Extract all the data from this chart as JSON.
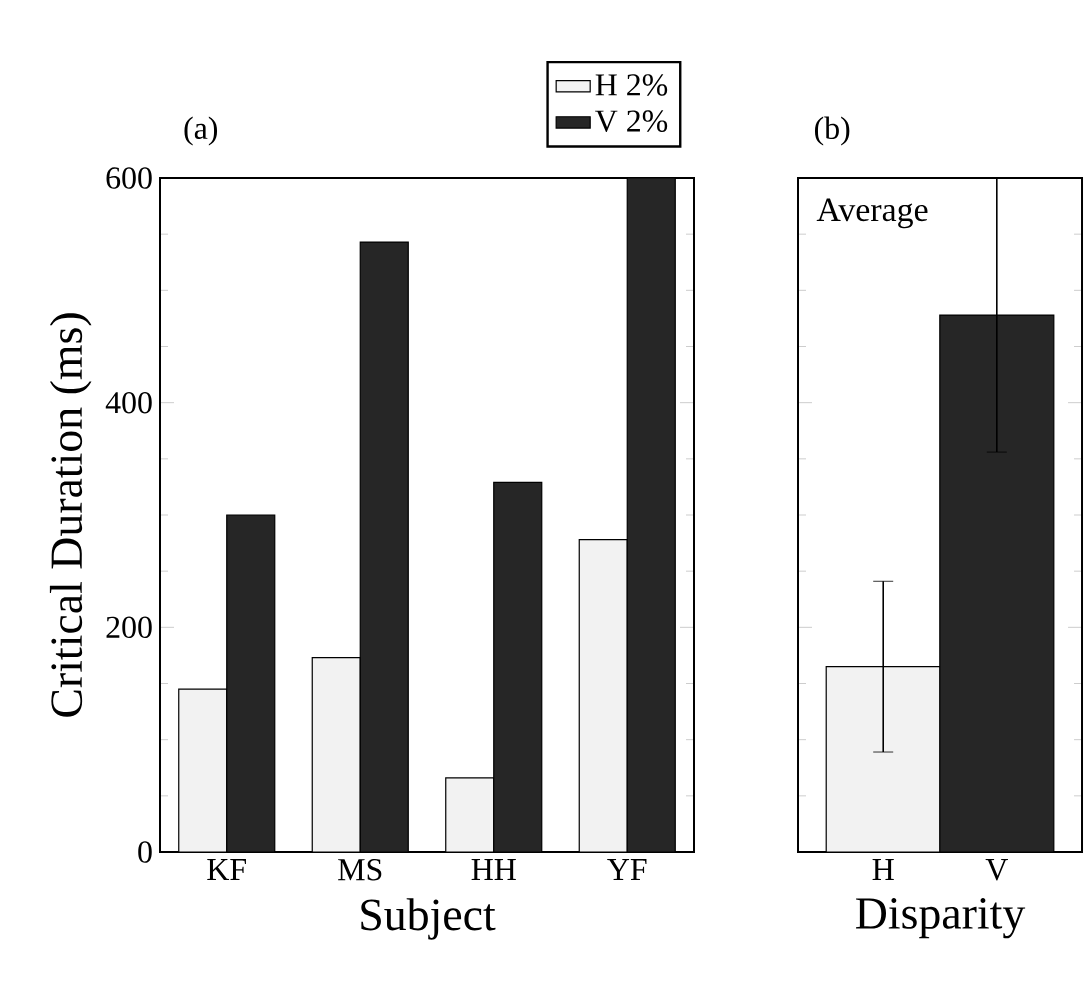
{
  "chart_data": [
    {
      "type": "bar",
      "title": "(a)",
      "xlabel": "Subject",
      "ylabel": "Critical Duration (ms)",
      "categories": [
        "KF",
        "MS",
        "HH",
        "YF"
      ],
      "series": [
        {
          "name": "H 2%",
          "color": "#f2f2f2",
          "values": [
            145,
            173,
            66,
            278
          ]
        },
        {
          "name": "V 2%",
          "color": "#262626",
          "values": [
            300,
            543,
            329,
            600
          ]
        }
      ],
      "ylim": [
        0,
        600
      ],
      "yticks": [
        0,
        200,
        400,
        600
      ],
      "legend": "top"
    },
    {
      "type": "bar",
      "title": "(b)",
      "xlabel": "Disparity",
      "annotations": [
        "Average"
      ],
      "categories": [
        "H",
        "V"
      ],
      "values": [
        165,
        478
      ],
      "colors": [
        "#f2f2f2",
        "#262626"
      ],
      "errors": [
        [
          89,
          241
        ],
        122
      ],
      "ylim": [
        0,
        600
      ],
      "yticks": [
        0,
        200,
        400,
        600
      ],
      "tick_labels": "x"
    }
  ]
}
